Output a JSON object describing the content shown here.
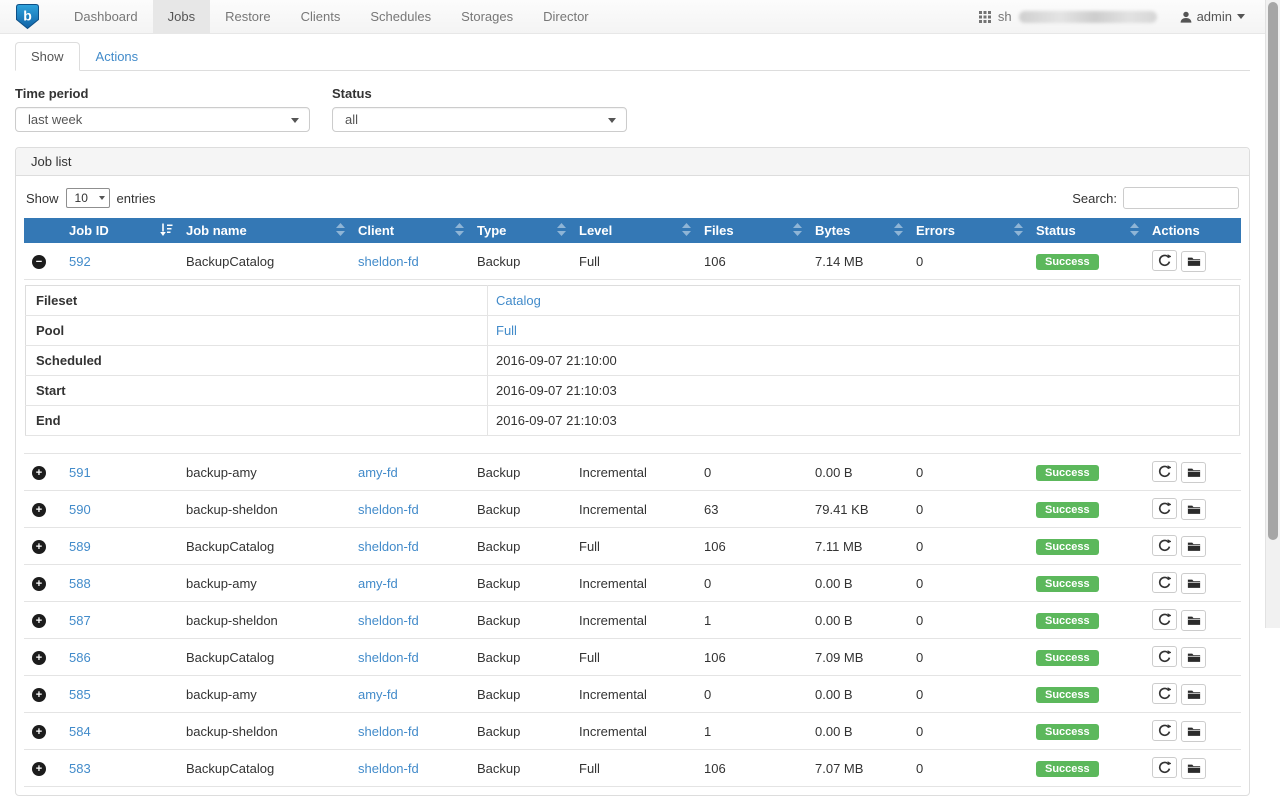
{
  "navbar": {
    "brand_letter": "b",
    "items": [
      {
        "label": "Dashboard",
        "active": false
      },
      {
        "label": "Jobs",
        "active": true
      },
      {
        "label": "Restore",
        "active": false
      },
      {
        "label": "Clients",
        "active": false
      },
      {
        "label": "Schedules",
        "active": false
      },
      {
        "label": "Storages",
        "active": false
      },
      {
        "label": "Director",
        "active": false
      }
    ],
    "host_prefix": "sh",
    "user_label": "admin"
  },
  "tabs": [
    {
      "label": "Show",
      "active": true
    },
    {
      "label": "Actions",
      "active": false
    }
  ],
  "filters": {
    "time_period_label": "Time period",
    "time_period_value": "last week",
    "status_label": "Status",
    "status_value": "all"
  },
  "job_list": {
    "title": "Job list",
    "show_label": "Show",
    "page_length": "10",
    "entries_label": "entries",
    "search_label": "Search:",
    "search_value": ""
  },
  "table": {
    "columns": [
      {
        "label": "Job ID",
        "sort_active": true
      },
      {
        "label": "Job name",
        "sort_active": false
      },
      {
        "label": "Client",
        "sort_active": false
      },
      {
        "label": "Type",
        "sort_active": false
      },
      {
        "label": "Level",
        "sort_active": false
      },
      {
        "label": "Files",
        "sort_active": false
      },
      {
        "label": "Bytes",
        "sort_active": false
      },
      {
        "label": "Errors",
        "sort_active": false
      },
      {
        "label": "Status",
        "sort_active": false
      },
      {
        "label": "Actions",
        "sort_active": false
      }
    ],
    "rows": [
      {
        "id": "592",
        "name": "BackupCatalog",
        "client": "sheldon-fd",
        "type": "Backup",
        "level": "Full",
        "files": "106",
        "bytes": "7.14 MB",
        "errors": "0",
        "status": "Success",
        "expanded": true
      },
      {
        "id": "591",
        "name": "backup-amy",
        "client": "amy-fd",
        "type": "Backup",
        "level": "Incremental",
        "files": "0",
        "bytes": "0.00 B",
        "errors": "0",
        "status": "Success",
        "expanded": false
      },
      {
        "id": "590",
        "name": "backup-sheldon",
        "client": "sheldon-fd",
        "type": "Backup",
        "level": "Incremental",
        "files": "63",
        "bytes": "79.41 KB",
        "errors": "0",
        "status": "Success",
        "expanded": false
      },
      {
        "id": "589",
        "name": "BackupCatalog",
        "client": "sheldon-fd",
        "type": "Backup",
        "level": "Full",
        "files": "106",
        "bytes": "7.11 MB",
        "errors": "0",
        "status": "Success",
        "expanded": false
      },
      {
        "id": "588",
        "name": "backup-amy",
        "client": "amy-fd",
        "type": "Backup",
        "level": "Incremental",
        "files": "0",
        "bytes": "0.00 B",
        "errors": "0",
        "status": "Success",
        "expanded": false
      },
      {
        "id": "587",
        "name": "backup-sheldon",
        "client": "sheldon-fd",
        "type": "Backup",
        "level": "Incremental",
        "files": "1",
        "bytes": "0.00 B",
        "errors": "0",
        "status": "Success",
        "expanded": false
      },
      {
        "id": "586",
        "name": "BackupCatalog",
        "client": "sheldon-fd",
        "type": "Backup",
        "level": "Full",
        "files": "106",
        "bytes": "7.09 MB",
        "errors": "0",
        "status": "Success",
        "expanded": false
      },
      {
        "id": "585",
        "name": "backup-amy",
        "client": "amy-fd",
        "type": "Backup",
        "level": "Incremental",
        "files": "0",
        "bytes": "0.00 B",
        "errors": "0",
        "status": "Success",
        "expanded": false
      },
      {
        "id": "584",
        "name": "backup-sheldon",
        "client": "sheldon-fd",
        "type": "Backup",
        "level": "Incremental",
        "files": "1",
        "bytes": "0.00 B",
        "errors": "0",
        "status": "Success",
        "expanded": false
      },
      {
        "id": "583",
        "name": "BackupCatalog",
        "client": "sheldon-fd",
        "type": "Backup",
        "level": "Full",
        "files": "106",
        "bytes": "7.07 MB",
        "errors": "0",
        "status": "Success",
        "expanded": false
      }
    ],
    "expanded_details": {
      "job_id": "592",
      "rows": [
        {
          "label": "Fileset",
          "value": "Catalog",
          "is_link": true
        },
        {
          "label": "Pool",
          "value": "Full",
          "is_link": true
        },
        {
          "label": "Scheduled",
          "value": "2016-09-07 21:10:00",
          "is_link": false
        },
        {
          "label": "Start",
          "value": "2016-09-07 21:10:03",
          "is_link": false
        },
        {
          "label": "End",
          "value": "2016-09-07 21:10:03",
          "is_link": false
        }
      ]
    }
  },
  "colors": {
    "table_header": "#3478b5",
    "link": "#428bca",
    "success_badge": "#5cb85c",
    "navbar_bg": "#f8f8f8"
  }
}
